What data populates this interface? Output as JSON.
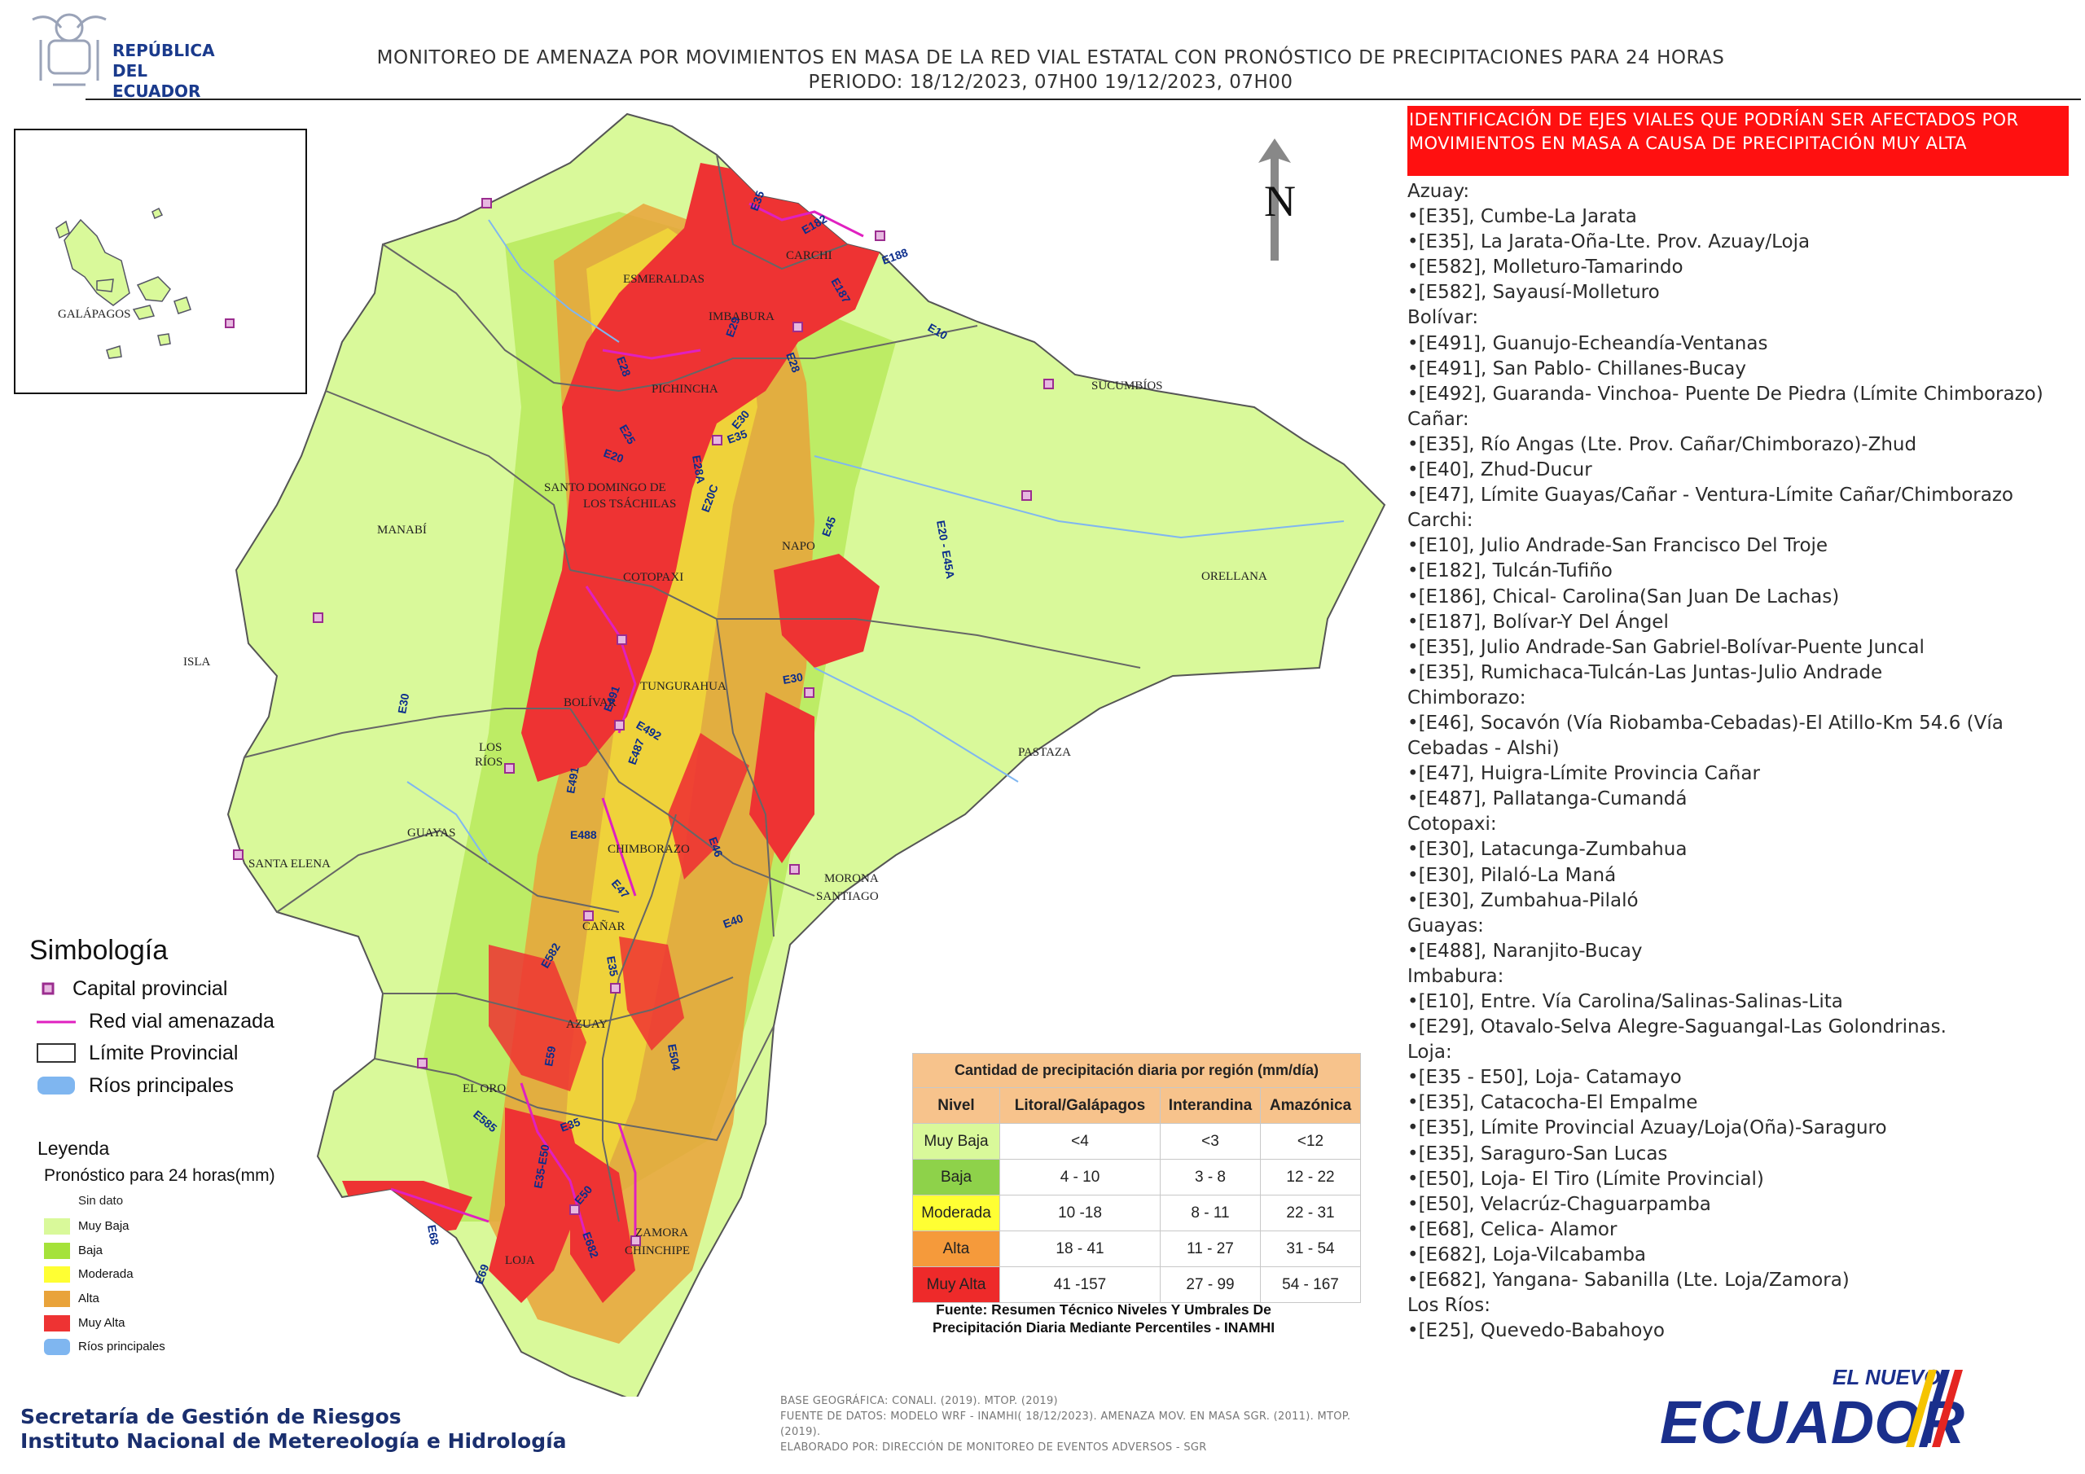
{
  "header": {
    "logo_text": [
      "REPÚBLICA",
      "DEL ECUADOR"
    ],
    "title": "MONITOREO DE AMENAZA POR MOVIMIENTOS EN MASA DE LA RED VIAL  ESTATAL  CON PRONÓSTICO  DE  PRECIPITACIONES PARA 24 HORAS",
    "period": "PERIODO: 18/12/2023, 07H00 19/12/2023, 07H00"
  },
  "north_arrow": {
    "label": "N"
  },
  "map": {
    "inset_label": "GALÁPAGOS",
    "province_labels": [
      {
        "name": "ESMERALDAS",
        "id": "esmeraldas"
      },
      {
        "name": "CARCHI",
        "id": "carchi"
      },
      {
        "name": "IMBABURA",
        "id": "imbabura"
      },
      {
        "name": "PICHINCHA",
        "id": "pichincha"
      },
      {
        "name": "SUCUMBÍOS",
        "id": "sucumbios"
      },
      {
        "name": "SANTO DOMINGO DE",
        "id": "sdt1"
      },
      {
        "name": "LOS TSÁCHILAS",
        "id": "sdt2"
      },
      {
        "name": "MANABÍ",
        "id": "manabi"
      },
      {
        "name": "NAPO",
        "id": "napo"
      },
      {
        "name": "ORELLANA",
        "id": "orellana"
      },
      {
        "name": "COTOPAXI",
        "id": "cotopaxi"
      },
      {
        "name": "ISLA",
        "id": "isla"
      },
      {
        "name": "TUNGURAHUA",
        "id": "tungurahua"
      },
      {
        "name": "BOLÍVAR",
        "id": "bolivar"
      },
      {
        "name": "LOS",
        "id": "losrios1"
      },
      {
        "name": "RÍOS",
        "id": "losrios2"
      },
      {
        "name": "PASTAZA",
        "id": "pastaza"
      },
      {
        "name": "GUAYAS",
        "id": "guayas"
      },
      {
        "name": "SANTA ELENA",
        "id": "santaelena"
      },
      {
        "name": "CHIMBORAZO",
        "id": "chimborazo"
      },
      {
        "name": "MORONA",
        "id": "morona1"
      },
      {
        "name": "SANTIAGO",
        "id": "morona2"
      },
      {
        "name": "CAÑAR",
        "id": "canar"
      },
      {
        "name": "AZUAY",
        "id": "azuay"
      },
      {
        "name": "EL ORO",
        "id": "eloro"
      },
      {
        "name": "LOJA",
        "id": "loja"
      },
      {
        "name": "ZAMORA",
        "id": "zamora1"
      },
      {
        "name": "CHINCHIPE",
        "id": "zamora2"
      }
    ],
    "road_labels": [
      "E182",
      "E188",
      "E187",
      "E35",
      "E10",
      "E29",
      "E28",
      "E28",
      "E25",
      "E20",
      "E35",
      "E28A",
      "E30",
      "E20C",
      "E45",
      "E20 - E45A",
      "E30",
      "E491",
      "E492",
      "E30",
      "E487",
      "E491",
      "E488",
      "E46",
      "E47",
      "E40",
      "E582",
      "E35",
      "E59",
      "E504",
      "E585",
      "E35",
      "E35-E50",
      "E50",
      "E682",
      "E68",
      "E69"
    ]
  },
  "right_panel": {
    "alert_title": "IDENTIFICACIÓN DE EJES VIALES QUE PODRÍAN SER AFECTADOS POR MOVIMIENTOS EN MASA A CAUSA DE PRECIPITACIÓN MUY ALTA",
    "provinces": [
      {
        "name": "Azuay:",
        "items": [
          "•[E35], Cumbe-La Jarata",
          "•[E35], La Jarata-Oña-Lte. Prov. Azuay/Loja",
          "•[E582], Molleturo-Tamarindo",
          "•[E582], Sayausí-Molleturo"
        ]
      },
      {
        "name": "Bolívar:",
        "items": [
          "•[E491], Guanujo-Echeandía-Ventanas",
          "•[E491], San Pablo- Chillanes-Bucay",
          "•[E492], Guaranda- Vinchoa- Puente De Piedra (Límite Chimborazo)"
        ]
      },
      {
        "name": "Cañar:",
        "items": [
          "•[E35], Río Angas (Lte. Prov. Cañar/Chimborazo)-Zhud",
          "•[E40], Zhud-Ducur",
          "•[E47], Límite Guayas/Cañar - Ventura-Límite Cañar/Chimborazo"
        ]
      },
      {
        "name": "Carchi:",
        "items": [
          "•[E10], Julio Andrade-San Francisco Del Troje",
          "•[E182], Tulcán-Tufiño",
          "•[E186], Chical- Carolina(San Juan De Lachas)",
          "•[E187], Bolívar-Y Del Ángel",
          "•[E35], Julio Andrade-San Gabriel-Bolívar-Puente Juncal",
          "•[E35], Rumichaca-Tulcán-Las Juntas-Julio Andrade"
        ]
      },
      {
        "name": "Chimborazo:",
        "items": [
          "•[E46], Socavón (Vía Riobamba-Cebadas)-El Atillo-Km 54.6 (Vía Cebadas - Alshi)",
          "•[E47], Huigra-Límite Provincia Cañar",
          "•[E487], Pallatanga-Cumandá"
        ]
      },
      {
        "name": "Cotopaxi:",
        "items": [
          "•[E30], Latacunga-Zumbahua",
          "•[E30], Pilaló-La Maná",
          "•[E30], Zumbahua-Pilaló"
        ]
      },
      {
        "name": "Guayas:",
        "items": [
          "•[E488], Naranjito-Bucay"
        ]
      },
      {
        "name": "Imbabura:",
        "items": [
          "•[E10], Entre. Vía Carolina/Salinas-Salinas-Lita",
          "•[E29], Otavalo-Selva Alegre-Saguangal-Las Golondrinas."
        ]
      },
      {
        "name": "Loja:",
        "items": [
          "•[E35 - E50], Loja- Catamayo",
          "•[E35], Catacocha-El Empalme",
          "•[E35], Límite Provincial Azuay/Loja(Oña)-Saraguro",
          "•[E35], Saraguro-San Lucas",
          "•[E50], Loja- El Tiro (Límite Provincial)",
          "•[E50], Velacrúz-Chaguarpamba",
          "•[E68], Celica- Alamor",
          "•[E682], Loja-Vilcabamba",
          "•[E682], Yangana- Sabanilla (Lte. Loja/Zamora)"
        ]
      },
      {
        "name": "Los Ríos:",
        "items": [
          "•[E25], Quevedo-Babahoyo"
        ]
      }
    ]
  },
  "simbologia": {
    "title": "Simbología",
    "items": [
      {
        "label": "Capital provincial",
        "kind": "capital"
      },
      {
        "label": "Red vial amenazada",
        "kind": "road"
      },
      {
        "label": "Límite Provincial",
        "kind": "boundary"
      },
      {
        "label": "Ríos principales",
        "kind": "river"
      }
    ]
  },
  "leyenda": {
    "title": "Leyenda",
    "subtitle": "Pronóstico para 24 horas(mm)",
    "no_data": "Sin dato",
    "items": [
      {
        "label": "Muy Baja",
        "color": "#d9f99a"
      },
      {
        "label": "Baja",
        "color": "#a5e23a"
      },
      {
        "label": "Moderada",
        "color": "#ffff33"
      },
      {
        "label": "Alta",
        "color": "#e9a33a"
      },
      {
        "label": "Muy Alta",
        "color": "#ee3333"
      },
      {
        "label": "Ríos principales",
        "color": "#7fb6f0"
      }
    ]
  },
  "precip_table": {
    "title": "Cantidad de precipitación diaria por región (mm/día)",
    "headers": [
      "Nivel",
      "Litoral/Galápagos",
      "Interandina",
      "Amazónica"
    ],
    "rows": [
      {
        "level": "Muy Baja",
        "color": "#d9f99a",
        "text": "#333",
        "values": [
          "<4",
          "<3",
          "<12"
        ]
      },
      {
        "level": "Baja",
        "color": "#8ed24a",
        "text": "#333",
        "values": [
          "4 - 10",
          "3 - 8",
          "12 - 22"
        ]
      },
      {
        "level": "Moderada",
        "color": "#ffff33",
        "text": "#333",
        "values": [
          "10 -18",
          "8 - 11",
          "22 - 31"
        ]
      },
      {
        "level": "Alta",
        "color": "#f59a3b",
        "text": "#333",
        "values": [
          "18 - 41",
          "11 - 27",
          "31 - 54"
        ]
      },
      {
        "level": "Muy Alta",
        "color": "#ee2a2a",
        "text": "#333",
        "values": [
          "41 -157",
          "27 - 99",
          "54 - 167"
        ]
      }
    ],
    "source": "Fuente: Resumen Técnico Niveles Y Umbrales De Precipitación Diaria Mediante Percentiles - INAMHI"
  },
  "footer": {
    "org_lines": [
      "Secretaría de Gestión de Riesgos",
      "Instituto Nacional de Metereología e Hidrología"
    ],
    "credits": [
      "BASE GEOGRÁFICA: CONALI. (2019). MTOP. (2019)",
      "FUENTE DE DATOS: MODELO WRF - INAMHI( 18/12/2023).  AMENAZA MOV. EN MASA SGR. (2011). MTOP. (2019).",
      "ELABORADO POR: DIRECCIÓN DE MONITOREO DE EVENTOS ADVERSOS - SGR"
    ],
    "logo_small": "EL NUEVO",
    "logo_big": "ECUADOR"
  },
  "colors": {
    "muy_baja": "#d9f99a",
    "baja": "#a5e23a",
    "moderada": "#ffff33",
    "alta": "#e9a33a",
    "muy_alta": "#ee3333",
    "road": "#e020c0",
    "capital": "#9b2d8f",
    "label_road": "#0b2d8c",
    "alert": "#ff1010"
  }
}
